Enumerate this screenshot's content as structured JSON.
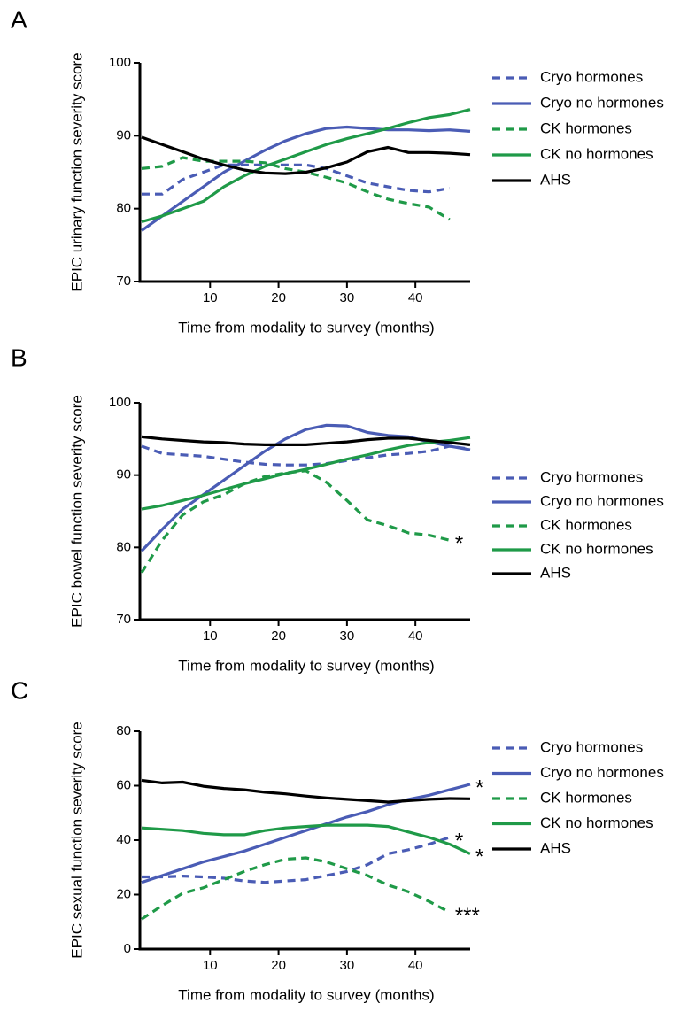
{
  "chart_data": [
    {
      "type": "line",
      "label": "A",
      "xlabel": "Time from modality to survey (months)",
      "ylabel": "EPIC urinary function severity score",
      "x": [
        0,
        3,
        6,
        9,
        12,
        15,
        18,
        21,
        24,
        27,
        30,
        33,
        36,
        39,
        42,
        45,
        48
      ],
      "xlim": [
        0,
        48
      ],
      "xticks": [
        10,
        20,
        30,
        40
      ],
      "ylim": [
        70,
        100
      ],
      "yticks": [
        70,
        80,
        90,
        100
      ],
      "series": [
        {
          "name": "Cryo hormones",
          "color": "#4a5cb5",
          "style": "dashed",
          "values": [
            82,
            82,
            84,
            85,
            86,
            86,
            86,
            86,
            86,
            85.5,
            84.5,
            83.5,
            83,
            82.5,
            82.3,
            82.8,
            null
          ]
        },
        {
          "name": "Cryo no hormones",
          "color": "#4a5cb5",
          "style": "solid",
          "values": [
            77,
            79,
            81,
            83,
            85,
            86.5,
            88,
            89.3,
            90.3,
            91,
            91.2,
            91,
            90.8,
            90.8,
            90.7,
            90.8,
            90.6
          ]
        },
        {
          "name": "CK hormones",
          "color": "#1f9a48",
          "style": "dashed",
          "values": [
            85.5,
            85.8,
            87,
            86.5,
            86.5,
            86.5,
            86.3,
            85.5,
            85,
            84.3,
            83.5,
            82.3,
            81.3,
            80.7,
            80.2,
            78.5,
            null
          ]
        },
        {
          "name": "CK no hormones",
          "color": "#1f9a48",
          "style": "solid",
          "values": [
            78.2,
            79,
            80,
            81,
            83,
            84.5,
            85.8,
            86.8,
            87.8,
            88.8,
            89.6,
            90.3,
            91,
            91.8,
            92.5,
            92.9,
            93.6
          ]
        },
        {
          "name": "AHS",
          "color": "#000000",
          "style": "solid",
          "values": [
            89.8,
            88.8,
            87.8,
            86.8,
            86,
            85.3,
            84.9,
            84.8,
            85,
            85.6,
            86.4,
            87.8,
            88.4,
            87.7,
            87.7,
            87.6,
            87.4
          ]
        }
      ]
    },
    {
      "type": "line",
      "label": "B",
      "xlabel": "Time from modality to survey (months)",
      "ylabel": "EPIC bowel function severity score",
      "x": [
        0,
        3,
        6,
        9,
        12,
        15,
        18,
        21,
        24,
        27,
        30,
        33,
        36,
        39,
        42,
        45,
        48
      ],
      "xlim": [
        0,
        48
      ],
      "xticks": [
        10,
        20,
        30,
        40
      ],
      "ylim": [
        70,
        100
      ],
      "yticks": [
        70,
        80,
        90,
        100
      ],
      "series": [
        {
          "name": "Cryo hormones",
          "color": "#4a5cb5",
          "style": "dashed",
          "values": [
            94,
            93,
            92.8,
            92.6,
            92.2,
            91.8,
            91.5,
            91.4,
            91.4,
            91.6,
            92,
            92.4,
            92.8,
            93,
            93.3,
            94,
            93.6
          ]
        },
        {
          "name": "Cryo no hormones",
          "color": "#4a5cb5",
          "style": "solid",
          "values": [
            79.5,
            82.5,
            85.3,
            87.3,
            89.3,
            91.3,
            93.3,
            95,
            96.3,
            96.9,
            96.8,
            95.9,
            95.5,
            95.3,
            94.6,
            94,
            93.5
          ]
        },
        {
          "name": "CK hormones",
          "color": "#1f9a48",
          "style": "dashed",
          "annotation": "*",
          "values": [
            76.5,
            81,
            84.5,
            86.3,
            87.3,
            88.8,
            89.8,
            90.3,
            90.6,
            89,
            86.5,
            83.8,
            83,
            82,
            81.7,
            81,
            null
          ]
        },
        {
          "name": "CK no hormones",
          "color": "#1f9a48",
          "style": "solid",
          "values": [
            85.3,
            85.8,
            86.5,
            87.2,
            88,
            88.8,
            89.5,
            90.2,
            90.8,
            91.5,
            92.2,
            92.8,
            93.5,
            94.1,
            94.5,
            94.8,
            95.2
          ]
        },
        {
          "name": "AHS",
          "color": "#000000",
          "style": "solid",
          "values": [
            95.3,
            95,
            94.8,
            94.6,
            94.5,
            94.3,
            94.2,
            94.2,
            94.2,
            94.4,
            94.6,
            94.9,
            95.1,
            95.1,
            94.8,
            94.5,
            94.2
          ]
        }
      ]
    },
    {
      "type": "line",
      "label": "C",
      "xlabel": "Time from modality to survey (months)",
      "ylabel": "EPIC sexual function severity score",
      "x": [
        0,
        3,
        6,
        9,
        12,
        15,
        18,
        21,
        24,
        27,
        30,
        33,
        36,
        39,
        42,
        45,
        48
      ],
      "xlim": [
        0,
        48
      ],
      "xticks": [
        10,
        20,
        30,
        40
      ],
      "ylim": [
        0,
        80
      ],
      "yticks": [
        0,
        20,
        40,
        60,
        80
      ],
      "series": [
        {
          "name": "Cryo hormones",
          "color": "#4a5cb5",
          "style": "dashed",
          "annotation": "*",
          "values": [
            26.5,
            26.5,
            26.8,
            26.5,
            26,
            25,
            24.5,
            25,
            25.5,
            27,
            28.5,
            31,
            35,
            36.5,
            38.5,
            41,
            null
          ]
        },
        {
          "name": "Cryo no hormones",
          "color": "#4a5cb5",
          "style": "solid",
          "annotation": "*",
          "values": [
            24.5,
            27,
            29.5,
            32,
            34,
            36,
            38.5,
            41,
            43.5,
            46,
            48.5,
            50.5,
            53,
            55,
            56.5,
            58.5,
            60.5
          ]
        },
        {
          "name": "CK hormones",
          "color": "#1f9a48",
          "style": "dashed",
          "annotation": "***",
          "values": [
            11,
            16,
            20.5,
            22.5,
            25.5,
            28.5,
            31,
            33,
            33.5,
            32,
            29.5,
            27,
            23.5,
            21,
            17.5,
            13.5,
            null
          ]
        },
        {
          "name": "CK no hormones",
          "color": "#1f9a48",
          "style": "solid",
          "annotation": "*",
          "values": [
            44.5,
            44,
            43.5,
            42.5,
            42,
            42,
            43.5,
            44.5,
            45,
            45.5,
            45.5,
            45.5,
            45,
            43,
            41,
            38.5,
            35
          ]
        },
        {
          "name": "AHS",
          "color": "#000000",
          "style": "solid",
          "values": [
            62,
            61,
            61.3,
            59.8,
            59,
            58.5,
            57.6,
            57,
            56.2,
            55.5,
            55,
            54.5,
            54,
            54.5,
            55,
            55.3,
            55.2
          ]
        }
      ]
    }
  ]
}
